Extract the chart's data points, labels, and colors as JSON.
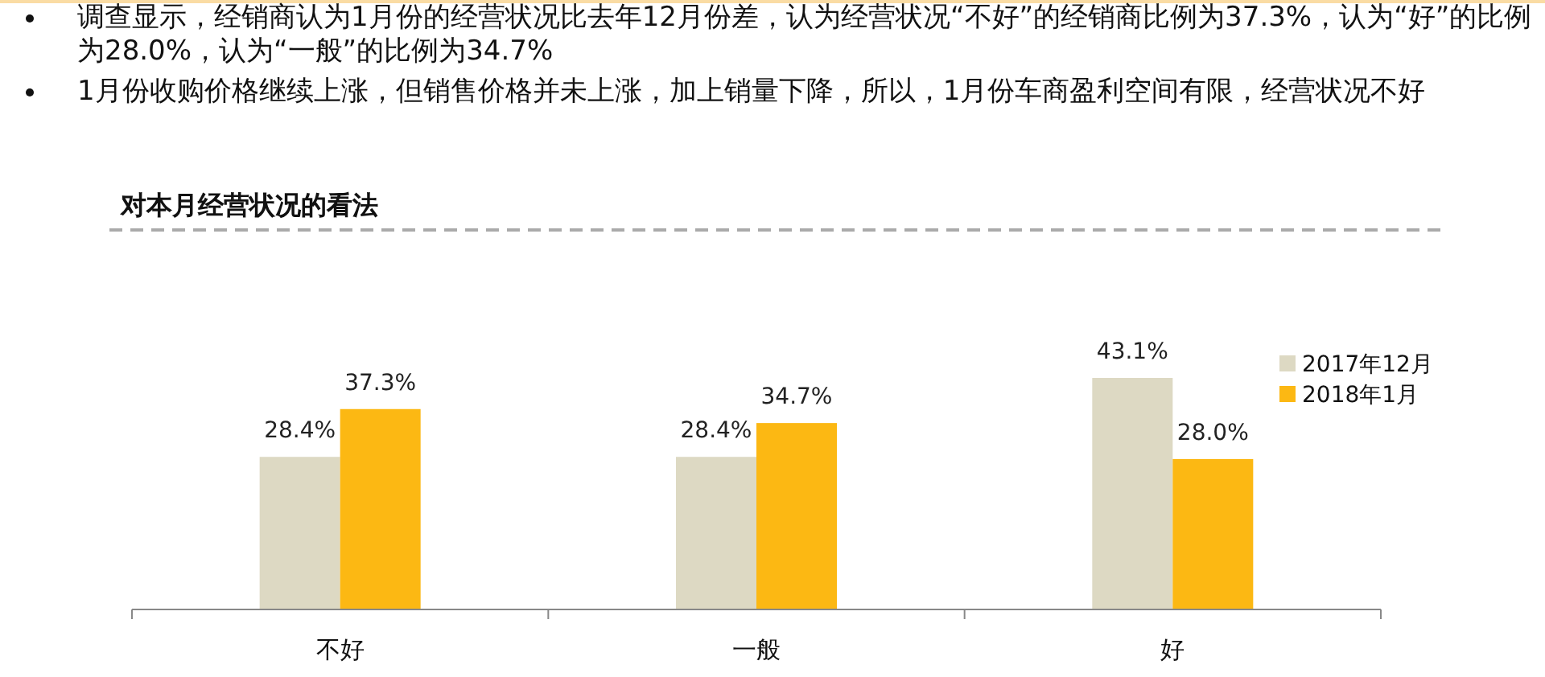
{
  "chart_data": {
    "type": "bar",
    "title": "对本月经营状况的看法",
    "annotations": [
      "调查显示，经销商认为1月份的经营状况比去年12月份差，认为经营状况“不好”的经销商比例为37.3%，认为“好”的比例为28.0%，认为“一般”的比例为34.7%",
      "1月份收购价格继续上涨，但销售价格并未上涨，加上销量下降，所以，1月份车商盈利空间有限，经营状况不好"
    ],
    "categories": [
      "不好",
      "一般",
      "好"
    ],
    "series": [
      {
        "name": "2017年12月",
        "color": "#ddd9c3",
        "values": [
          28.4,
          28.4,
          43.1
        ],
        "value_labels": [
          "28.4%",
          "28.4%",
          "43.1%"
        ]
      },
      {
        "name": "2018年1月",
        "color": "#fcb813",
        "values": [
          37.3,
          34.7,
          28.0
        ],
        "value_labels": [
          "37.3%",
          "34.7%",
          "28.0%"
        ]
      }
    ],
    "legend": "top right"
  }
}
